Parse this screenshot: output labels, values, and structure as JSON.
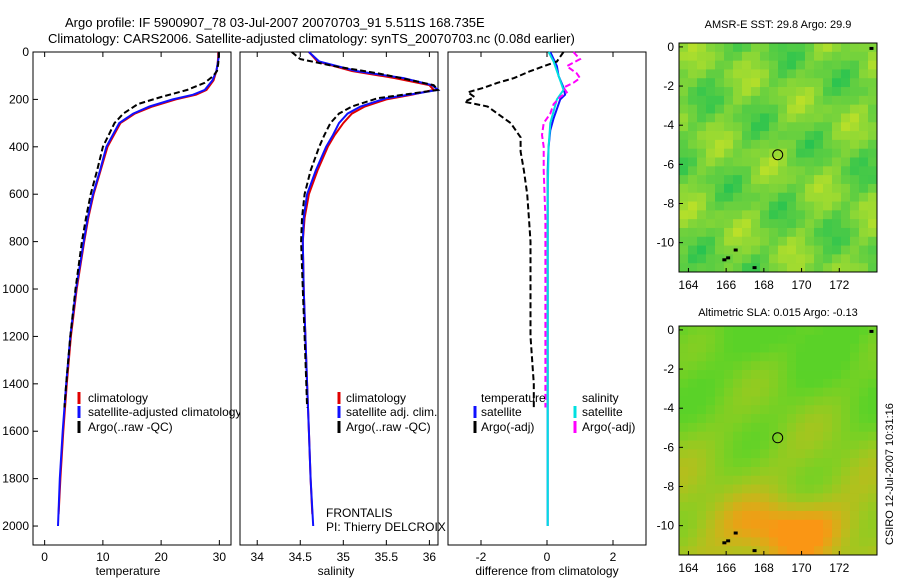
{
  "figure": {
    "title_line1": "Argo profile: IF 5900907_78 03-Jul-2007 20070703_91 5.511S 168.735E",
    "title_line2": "Climatology: CARS2006. Satellite-adjusted climatology: synTS_20070703.nc (0.08d earlier)",
    "side_label": "CSIRO 12-Jul-2007 10:31:16",
    "colors": {
      "clim": "#e00000",
      "sat": "#1010ff",
      "argo": "#000000",
      "sat_salt": "#00e0e0",
      "argo_salt": "#ff00ff"
    }
  },
  "chart_data": [
    {
      "id": "temperature",
      "type": "line",
      "xlabel": "temperature",
      "ylabel": "",
      "xlim": [
        -2,
        32
      ],
      "ylim": [
        2080,
        0
      ],
      "xticks": [
        0,
        10,
        20,
        30
      ],
      "yticks": [
        0,
        200,
        400,
        600,
        800,
        1000,
        1200,
        1400,
        1600,
        1800,
        2000
      ],
      "legend": [
        "climatology",
        "satellite-adjusted climatology",
        "Argo(..raw -QC)"
      ],
      "series": [
        {
          "name": "climatology",
          "color": "#e00000",
          "dash": "",
          "depth": [
            0,
            20,
            50,
            80,
            120,
            160,
            180,
            200,
            230,
            260,
            300,
            400,
            500,
            600,
            700,
            800,
            1000,
            1200,
            1400,
            1600,
            1800,
            1950
          ],
          "values": [
            29.8,
            29.8,
            29.7,
            29.5,
            29.0,
            27.8,
            26.0,
            22.5,
            18.5,
            15.5,
            13.0,
            10.8,
            9.6,
            8.4,
            7.5,
            6.8,
            5.5,
            4.5,
            3.8,
            3.2,
            2.7,
            2.4
          ]
        },
        {
          "name": "satellite-adjusted climatology",
          "color": "#1010ff",
          "dash": "",
          "depth": [
            0,
            20,
            50,
            80,
            120,
            160,
            180,
            200,
            230,
            260,
            300,
            400,
            500,
            600,
            700,
            800,
            1000,
            1200,
            1400,
            1600,
            1800,
            2000
          ],
          "values": [
            29.9,
            29.9,
            29.7,
            29.5,
            28.8,
            27.5,
            25.5,
            22.0,
            18.0,
            15.2,
            12.8,
            10.6,
            9.5,
            8.3,
            7.4,
            6.7,
            5.4,
            4.4,
            3.7,
            3.1,
            2.6,
            2.3
          ]
        },
        {
          "name": "Argo(..raw -QC)",
          "color": "#000000",
          "dash": "6,3",
          "depth": [
            0,
            20,
            50,
            80,
            100,
            130,
            160,
            190,
            220,
            260,
            300,
            400,
            500,
            600,
            700,
            800,
            1000,
            1200,
            1400,
            1500
          ],
          "values": [
            29.9,
            29.9,
            29.8,
            29.6,
            29.0,
            27.5,
            24.5,
            20.0,
            16.0,
            13.5,
            12.0,
            10.0,
            9.0,
            7.9,
            7.1,
            6.4,
            5.3,
            4.4,
            3.7,
            3.4
          ]
        }
      ]
    },
    {
      "id": "salinity",
      "type": "line",
      "xlabel": "salinity",
      "ylabel": "",
      "xlim": [
        33.8,
        36.1
      ],
      "ylim": [
        2080,
        0
      ],
      "xticks": [
        34,
        34.5,
        35,
        35.5,
        36
      ],
      "yticks": [],
      "legend": [
        "climatology",
        "satellite adj. clim.",
        "Argo(..raw -QC)"
      ],
      "series": [
        {
          "name": "climatology",
          "color": "#e00000",
          "dash": "",
          "depth": [
            0,
            40,
            80,
            110,
            140,
            160,
            180,
            200,
            230,
            260,
            300,
            350,
            400,
            500,
            600,
            700,
            800,
            1000,
            1200,
            1400,
            1600,
            1800,
            1950
          ],
          "values": [
            34.6,
            34.7,
            35.1,
            35.6,
            36.0,
            36.05,
            35.8,
            35.5,
            35.25,
            35.1,
            35.0,
            34.9,
            34.82,
            34.7,
            34.6,
            34.55,
            34.53,
            34.54,
            34.56,
            34.58,
            34.6,
            34.62,
            34.64
          ]
        },
        {
          "name": "satellite adj. clim.",
          "color": "#1010ff",
          "dash": "",
          "depth": [
            0,
            40,
            80,
            110,
            140,
            160,
            175,
            195,
            230,
            260,
            300,
            350,
            400,
            500,
            600,
            700,
            800,
            1000,
            1200,
            1400,
            1600,
            1800,
            2000
          ],
          "values": [
            34.6,
            34.72,
            35.15,
            35.7,
            36.03,
            36.1,
            35.85,
            35.5,
            35.2,
            35.05,
            34.95,
            34.88,
            34.8,
            34.68,
            34.58,
            34.54,
            34.53,
            34.54,
            34.56,
            34.58,
            34.6,
            34.62,
            34.65
          ]
        },
        {
          "name": "Argo(..raw -QC)",
          "color": "#000000",
          "dash": "6,3",
          "depth": [
            0,
            30,
            60,
            90,
            120,
            140,
            160,
            175,
            195,
            230,
            260,
            300,
            350,
            400,
            500,
            600,
            700,
            800,
            1000,
            1200,
            1400,
            1500
          ],
          "values": [
            34.4,
            34.5,
            34.9,
            35.4,
            35.8,
            36.05,
            36.1,
            35.8,
            35.4,
            35.1,
            34.95,
            34.85,
            34.78,
            34.72,
            34.62,
            34.55,
            34.52,
            34.51,
            34.53,
            34.55,
            34.57,
            34.58
          ]
        }
      ]
    },
    {
      "id": "difference",
      "type": "line",
      "xlabel": "difference from climatology",
      "ylabel": "",
      "xlim": [
        -3,
        3
      ],
      "ylim": [
        2080,
        0
      ],
      "xticks": [
        -2,
        0,
        2
      ],
      "yticks": [],
      "legend_temp_header": "temperature",
      "legend_salt_header": "salinity",
      "legend": [
        "satellite",
        "Argo(-adj)",
        "satellite",
        "Argo(-adj)"
      ],
      "series": [
        {
          "name": "temperature satellite",
          "color": "#1010ff",
          "dash": "",
          "depth": [
            0,
            60,
            100,
            150,
            180,
            200,
            240,
            280,
            330,
            400,
            500,
            700,
            900,
            1200,
            1500,
            2000
          ],
          "values": [
            0.1,
            0.3,
            0.35,
            0.5,
            0.55,
            0.4,
            0.3,
            0.2,
            0.1,
            0.05,
            0.02,
            0.02,
            0.02,
            0.02,
            0.02,
            0.02
          ]
        },
        {
          "name": "temperature Argo(-adj)",
          "color": "#000000",
          "dash": "6,3",
          "depth": [
            0,
            40,
            80,
            110,
            130,
            150,
            170,
            190,
            210,
            230,
            260,
            300,
            360,
            420,
            500,
            600,
            700,
            800,
            1000,
            1200,
            1400,
            1500
          ],
          "values": [
            0.5,
            0.3,
            -0.5,
            -1.0,
            -1.5,
            -1.9,
            -2.4,
            -2.2,
            -2.5,
            -1.8,
            -1.5,
            -1.1,
            -0.8,
            -0.8,
            -0.7,
            -0.6,
            -0.55,
            -0.5,
            -0.5,
            -0.5,
            -0.4,
            -0.4
          ]
        },
        {
          "name": "salinity satellite",
          "color": "#00e0e0",
          "dash": "",
          "depth": [
            0,
            40,
            80,
            120,
            160,
            200,
            250,
            300,
            400,
            600,
            800,
            1000,
            1400,
            1800,
            2000
          ],
          "values": [
            0.05,
            0.2,
            0.3,
            0.4,
            0.5,
            0.3,
            0.2,
            0.1,
            0.05,
            0.02,
            0.02,
            0.02,
            0.02,
            0.02,
            0.02
          ]
        },
        {
          "name": "salinity Argo(-adj)",
          "color": "#ff00ff",
          "dash": "6,3",
          "depth": [
            0,
            30,
            60,
            90,
            110,
            130,
            150,
            170,
            190,
            220,
            260,
            300,
            350,
            400,
            500,
            700,
            900,
            1100,
            1300,
            1500
          ],
          "values": [
            0.8,
            1.0,
            0.6,
            0.9,
            1.0,
            0.8,
            0.5,
            0.6,
            0.4,
            0.2,
            0.1,
            -0.1,
            -0.15,
            -0.1,
            -0.1,
            -0.05,
            -0.05,
            -0.05,
            -0.05,
            -0.05
          ]
        }
      ]
    },
    {
      "id": "sst_map",
      "type": "heatmap",
      "title": "AMSR-E SST: 29.8 Argo: 29.9",
      "xlim": [
        163.5,
        174
      ],
      "ylim": [
        -11.5,
        0.2
      ],
      "xticks": [
        164,
        166,
        168,
        170,
        172
      ],
      "yticks": [
        0,
        -2,
        -4,
        -6,
        -8,
        -10
      ],
      "marker": {
        "lon": 168.735,
        "lat": -5.511
      }
    },
    {
      "id": "sla_map",
      "type": "heatmap",
      "title": "Altimetric SLA: 0.015 Argo: -0.13",
      "xlim": [
        163.5,
        174
      ],
      "ylim": [
        -11.5,
        0.2
      ],
      "xticks": [
        164,
        166,
        168,
        170,
        172
      ],
      "yticks": [
        0,
        -2,
        -4,
        -6,
        -8,
        -10
      ],
      "marker": {
        "lon": 168.735,
        "lat": -5.511
      }
    }
  ],
  "annotations": {
    "float_type": "FRONTALIS",
    "pi": "PI: Thierry DELCROIX"
  }
}
